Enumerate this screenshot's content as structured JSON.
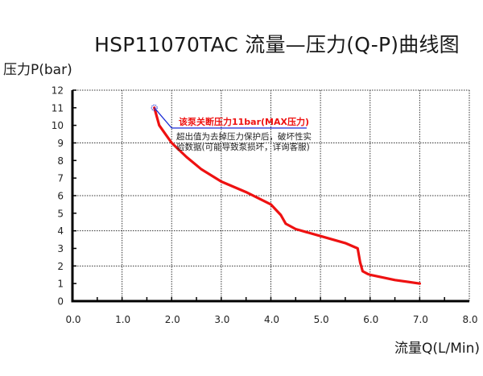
{
  "chart": {
    "title": "HSP11070TAC 流量—压力(Q-P)曲线图",
    "ylabel": "压力P(bar)",
    "xlabel": "流量Q(L/Min)",
    "annotation": {
      "headline": "该泵关断压力11bar(MAX压力)",
      "line1": "超出值为去掉压力保护后，破坏性实",
      "line2": "验数据(可能导致泵损坏，详询客服)"
    }
  },
  "colors": {
    "curve": "#ee1111",
    "leader": "#1a2bd6",
    "axis": "#000000",
    "grid": "#333333"
  },
  "chart_data": {
    "type": "line",
    "title": "HSP11070TAC 流量—压力(Q-P)曲线图",
    "xlabel": "流量Q(L/Min)",
    "ylabel": "压力P(bar)",
    "xlim": [
      0,
      8
    ],
    "ylim": [
      0,
      12
    ],
    "x_ticks": [
      "0.0",
      "1.0",
      "2.0",
      "3.0",
      "4.0",
      "5.0",
      "6.0",
      "7.0",
      "8.0"
    ],
    "y_ticks": [
      "0",
      "1",
      "2",
      "3",
      "4",
      "5",
      "6",
      "7",
      "8",
      "9",
      "10",
      "11",
      "12"
    ],
    "grid": {
      "vertical": [
        1,
        2,
        3,
        4,
        5,
        6,
        7,
        8
      ],
      "horizontal": [
        2,
        4,
        6,
        9,
        12
      ],
      "style": "dotted"
    },
    "series": [
      {
        "name": "Q-P",
        "x": [
          1.65,
          1.75,
          1.9,
          2.0,
          2.3,
          2.6,
          3.0,
          3.5,
          4.0,
          4.2,
          4.3,
          4.5,
          5.0,
          5.5,
          5.75,
          5.8,
          5.85,
          5.95,
          6.0,
          6.5,
          7.0
        ],
        "y": [
          11.0,
          10.0,
          9.4,
          9.0,
          8.2,
          7.5,
          6.8,
          6.2,
          5.5,
          4.9,
          4.4,
          4.1,
          3.7,
          3.3,
          3.0,
          2.2,
          1.7,
          1.55,
          1.5,
          1.2,
          1.0
        ]
      }
    ],
    "annotations": [
      {
        "text": "该泵关断压力11bar(MAX压力)",
        "at": [
          1.65,
          11
        ]
      },
      {
        "text": "超出值为去掉压力保护后，破坏性实验数据(可能导致泵损坏，详询客服)"
      }
    ]
  }
}
